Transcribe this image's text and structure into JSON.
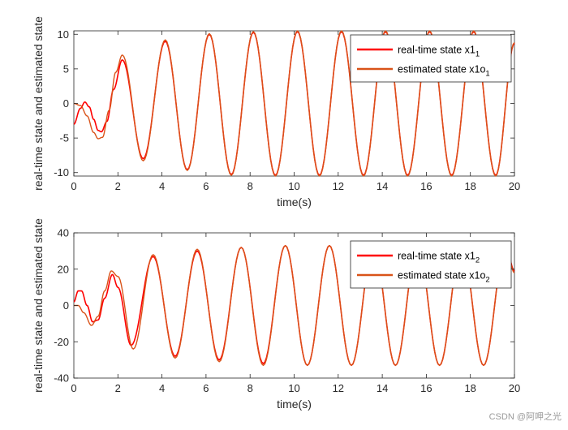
{
  "chart_data": [
    {
      "type": "line",
      "title": "",
      "xlabel": "time(s)",
      "ylabel": "real-time state and estimated state",
      "xlim": [
        0,
        20
      ],
      "ylim": [
        -10.5,
        10.5
      ],
      "xticks": [
        0,
        2,
        4,
        6,
        8,
        10,
        12,
        14,
        16,
        18,
        20
      ],
      "yticks": [
        -10,
        -5,
        0,
        5,
        10
      ],
      "grid": false,
      "legend_position": "top-right",
      "legend": [
        {
          "label": "real-time state x1",
          "sub": "1",
          "color": "#ff0000"
        },
        {
          "label": "estimated state x1o",
          "sub": "1",
          "color": "#d95319"
        }
      ],
      "series": [
        {
          "name": "real-time state x1_1",
          "color": "#ff0000",
          "x": [
            0,
            0.3,
            0.5,
            0.7,
            0.9,
            1.1,
            1.25,
            1.5,
            1.8,
            2.2,
            3.15,
            4.15,
            5.15,
            6.15,
            7.15,
            8.15,
            9.15,
            10.15,
            11.15,
            12.15,
            13.15,
            14.15,
            15.15,
            16.15,
            17.15,
            18.15,
            19.15,
            20
          ],
          "y": [
            -3,
            -0.7,
            0.2,
            -0.5,
            -2.3,
            -3.9,
            -4.1,
            -2.6,
            2.0,
            6.3,
            -8.0,
            9.0,
            -9.6,
            10.0,
            -10.3,
            10.3,
            -10.4,
            10.4,
            -10.4,
            10.4,
            -10.4,
            10.4,
            -10.4,
            10.4,
            -10.4,
            10.4,
            -10.4,
            8.7
          ]
        },
        {
          "name": "estimated state x1o_1",
          "color": "#d95319",
          "x": [
            0,
            0.3,
            0.6,
            0.9,
            1.1,
            1.3,
            1.6,
            1.9,
            2.2,
            3.15,
            4.15,
            5.15,
            6.15,
            7.15,
            8.15,
            9.15,
            10.15,
            11.15,
            12.15,
            13.15,
            14.15,
            15.15,
            16.15,
            17.15,
            18.15,
            19.15,
            20
          ],
          "y": [
            0,
            -0.3,
            -1.8,
            -4.2,
            -5.1,
            -4.9,
            -1.0,
            4.5,
            7.0,
            -8.3,
            9.2,
            -9.7,
            10.1,
            -10.4,
            10.4,
            -10.5,
            10.5,
            -10.5,
            10.5,
            -10.5,
            10.5,
            -10.5,
            10.5,
            -10.5,
            10.5,
            -10.5,
            8.8
          ]
        }
      ]
    },
    {
      "type": "line",
      "title": "",
      "xlabel": "time(s)",
      "ylabel": "real-time state and estimated state",
      "xlim": [
        0,
        20
      ],
      "ylim": [
        -40,
        40
      ],
      "xticks": [
        0,
        2,
        4,
        6,
        8,
        10,
        12,
        14,
        16,
        18,
        20
      ],
      "yticks": [
        -40,
        -20,
        0,
        20,
        40
      ],
      "grid": false,
      "legend_position": "top-right",
      "legend": [
        {
          "label": "real-time state x1",
          "sub": "2",
          "color": "#ff0000"
        },
        {
          "label": "estimated state x1o",
          "sub": "2",
          "color": "#d95319"
        }
      ],
      "series": [
        {
          "name": "real-time state x1_2",
          "color": "#ff0000",
          "x": [
            0,
            0.2,
            0.35,
            0.6,
            0.85,
            1.1,
            1.4,
            1.75,
            2.0,
            2.6,
            3.6,
            4.6,
            5.6,
            6.6,
            7.6,
            8.6,
            9.6,
            10.6,
            11.6,
            12.6,
            13.6,
            14.6,
            15.6,
            16.6,
            17.6,
            18.6,
            19.6,
            20
          ],
          "y": [
            2,
            8,
            8,
            0,
            -9,
            -8,
            4,
            17,
            10,
            -22,
            27,
            -28,
            30,
            -30,
            32,
            -32,
            33,
            -33,
            33,
            -33,
            33,
            -33,
            33,
            -33,
            33,
            -33,
            33,
            19
          ]
        },
        {
          "name": "estimated state x1o_2",
          "color": "#d95319",
          "x": [
            0,
            0.2,
            0.45,
            0.8,
            1.1,
            1.4,
            1.7,
            2.0,
            2.7,
            3.6,
            4.6,
            5.6,
            6.6,
            7.6,
            8.6,
            9.6,
            10.6,
            11.6,
            12.6,
            13.6,
            14.6,
            15.6,
            16.6,
            17.6,
            18.6,
            19.6,
            20
          ],
          "y": [
            0,
            0,
            -4,
            -11,
            -6,
            8,
            19,
            16,
            -24,
            28,
            -29,
            31,
            -31,
            32,
            -33,
            33,
            -33,
            33,
            -33,
            33,
            -33,
            33,
            -33,
            33,
            -33,
            33,
            18
          ]
        }
      ]
    }
  ],
  "watermark": "CSDN @阿呷之光"
}
